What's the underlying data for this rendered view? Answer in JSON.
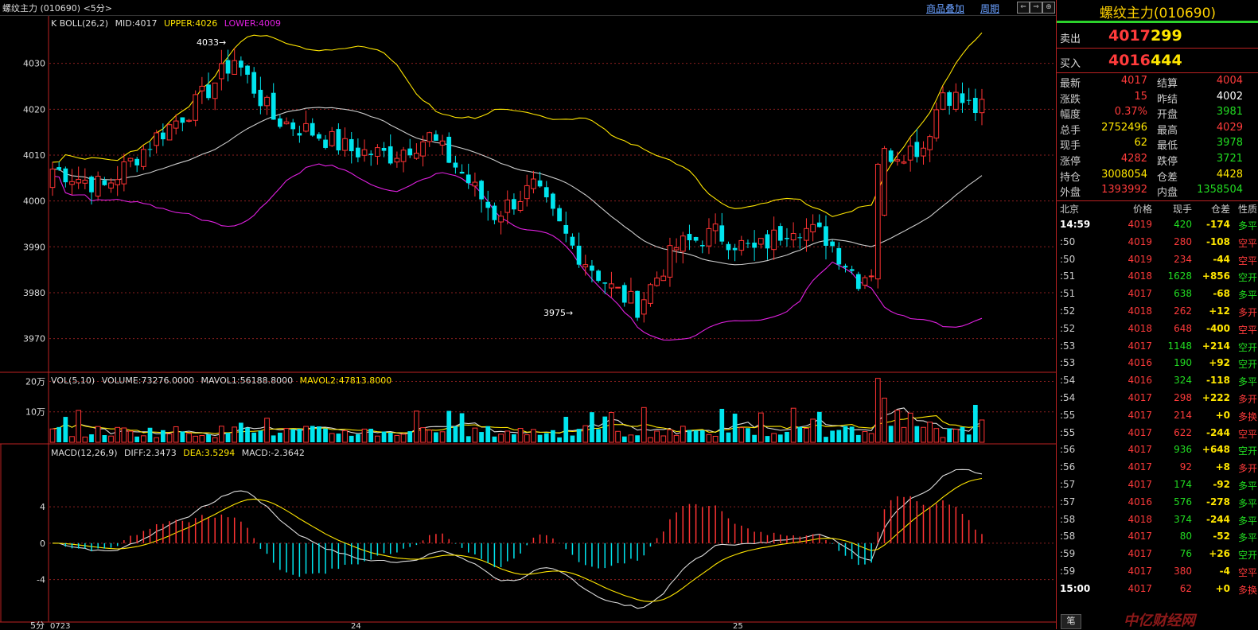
{
  "title": "螺纹主力 (010690) <5分>",
  "top_links": {
    "overlay": "商品叠加",
    "period": "周期"
  },
  "nav_buttons": [
    "⇐",
    "⇒",
    "⊕"
  ],
  "main_chart": {
    "indicator": "K BOLL(26,2)",
    "mid": "MID:4017",
    "upper": "UPPER:4026",
    "lower": "LOWER:4009",
    "y_ticks": [
      "4030",
      "4020",
      "4010",
      "4000",
      "3990",
      "3980",
      "3970"
    ],
    "high_mark": "4033",
    "low_mark": "3975"
  },
  "volume_chart": {
    "indicator": "VOL(5,10)",
    "volume": "VOLUME:73276.0000",
    "mavol1": "MAVOL1:56188.8000",
    "mavol2": "MAVOL2:47813.8000",
    "y_ticks": [
      "20万",
      "10万"
    ]
  },
  "macd_chart": {
    "indicator": "MACD(12,26,9)",
    "diff": "DIFF:2.3473",
    "dea": "DEA:3.5294",
    "macd": "MACD:-2.3642",
    "y_ticks": [
      "4",
      "0",
      "-4"
    ]
  },
  "x_axis": {
    "period": "5分",
    "labels": [
      "0723",
      "24",
      "25"
    ]
  },
  "colors": {
    "up": "#ff3333",
    "down": "#00e5ee",
    "upper": "#ffe600",
    "mid": "#cccccc",
    "lower": "#e020e0",
    "border": "#b22222"
  },
  "chart_data": [
    {
      "type": "candlestick",
      "title": "K BOLL(26,2)",
      "ylim": [
        3963,
        4040
      ],
      "y_ticks": [
        4030,
        4020,
        4010,
        4000,
        3990,
        3980,
        3970
      ],
      "bars": 144,
      "boll": {
        "mid": 4017,
        "upper": 4026,
        "lower": 4009
      },
      "high": 4033,
      "low": 3975,
      "anchors_close": [
        [
          0,
          4007
        ],
        [
          8,
          4003
        ],
        [
          16,
          4014
        ],
        [
          22,
          4021
        ],
        [
          28,
          4031
        ],
        [
          34,
          4018
        ],
        [
          40,
          4015
        ],
        [
          46,
          4011
        ],
        [
          52,
          4010
        ],
        [
          58,
          4014
        ],
        [
          63,
          4006
        ],
        [
          68,
          3997
        ],
        [
          74,
          4003
        ],
        [
          80,
          3990
        ],
        [
          86,
          3981
        ],
        [
          90,
          3977
        ],
        [
          96,
          3990
        ],
        [
          102,
          3993
        ],
        [
          108,
          3989
        ],
        [
          114,
          3995
        ],
        [
          119,
          3992
        ],
        [
          124,
          3983
        ],
        [
          126,
          3985
        ],
        [
          128,
          4010
        ],
        [
          134,
          4012
        ],
        [
          137,
          4024
        ],
        [
          142,
          4020
        ],
        [
          146,
          4020
        ],
        [
          150,
          4018
        ]
      ]
    },
    {
      "type": "bar",
      "title": "VOL(5,10)",
      "ylim": [
        0,
        230000
      ],
      "y_ticks": [
        200000,
        100000
      ],
      "last_volume": 73276,
      "mavol1": 56188.8,
      "mavol2": 47813.8
    },
    {
      "type": "bar",
      "title": "MACD(12,26,9)",
      "ylim": [
        -8.5,
        9
      ],
      "y_ticks": [
        4,
        0,
        -4
      ],
      "diff": 2.3473,
      "dea": 3.5294,
      "macd": -2.3642
    }
  ],
  "quote": {
    "name": "螺纹主力(010690)",
    "ask": {
      "label": "卖出",
      "price": "4017",
      "vol": "299"
    },
    "bid": {
      "label": "买入",
      "price": "4016",
      "vol": "444"
    },
    "stats": [
      {
        "l1": "最新",
        "v1": "4017",
        "c1": "red",
        "l2": "结算",
        "v2": "4004",
        "c2": "red"
      },
      {
        "l1": "涨跌",
        "v1": "15",
        "c1": "red",
        "l2": "昨结",
        "v2": "4002",
        "c2": "white"
      },
      {
        "l1": "幅度",
        "v1": "0.37%",
        "c1": "red",
        "l2": "开盘",
        "v2": "3981",
        "c2": "green"
      },
      {
        "l1": "总手",
        "v1": "2752496",
        "c1": "yellow",
        "l2": "最高",
        "v2": "4029",
        "c2": "red"
      },
      {
        "l1": "现手",
        "v1": "62",
        "c1": "yellow",
        "l2": "最低",
        "v2": "3978",
        "c2": "green"
      },
      {
        "l1": "涨停",
        "v1": "4282",
        "c1": "red",
        "l2": "跌停",
        "v2": "3721",
        "c2": "green"
      },
      {
        "l1": "持仓",
        "v1": "3008054",
        "c1": "yellow",
        "l2": "仓差",
        "v2": "4428",
        "c2": "yellow"
      },
      {
        "l1": "外盘",
        "v1": "1393992",
        "c1": "red",
        "l2": "内盘",
        "v2": "1358504",
        "c2": "green"
      }
    ],
    "trades_header": {
      "time": "北京",
      "price": "价格",
      "vol": "现手",
      "oi": "仓差",
      "nature": "性质"
    },
    "trades": [
      {
        "time": "14:59",
        "price": "4019",
        "pc": "red",
        "vol": "420",
        "vc": "green",
        "oi": "-174",
        "nature": "多平",
        "nc": "green"
      },
      {
        "time": ":50",
        "price": "4019",
        "pc": "red",
        "vol": "280",
        "vc": "red",
        "oi": "-108",
        "nature": "空平",
        "nc": "red"
      },
      {
        "time": ":50",
        "price": "4019",
        "pc": "red",
        "vol": "234",
        "vc": "red",
        "oi": "-44",
        "nature": "空平",
        "nc": "red"
      },
      {
        "time": ":51",
        "price": "4018",
        "pc": "red",
        "vol": "1628",
        "vc": "green",
        "oi": "+856",
        "nature": "空开",
        "nc": "green"
      },
      {
        "time": ":51",
        "price": "4017",
        "pc": "red",
        "vol": "638",
        "vc": "green",
        "oi": "-68",
        "nature": "多平",
        "nc": "green"
      },
      {
        "time": ":52",
        "price": "4018",
        "pc": "red",
        "vol": "262",
        "vc": "red",
        "oi": "+12",
        "nature": "多开",
        "nc": "red"
      },
      {
        "time": ":52",
        "price": "4018",
        "pc": "red",
        "vol": "648",
        "vc": "red",
        "oi": "-400",
        "nature": "空平",
        "nc": "red"
      },
      {
        "time": ":53",
        "price": "4017",
        "pc": "red",
        "vol": "1148",
        "vc": "green",
        "oi": "+214",
        "nature": "空开",
        "nc": "green"
      },
      {
        "time": ":53",
        "price": "4016",
        "pc": "red",
        "vol": "190",
        "vc": "green",
        "oi": "+92",
        "nature": "空开",
        "nc": "green"
      },
      {
        "time": ":54",
        "price": "4016",
        "pc": "red",
        "vol": "324",
        "vc": "green",
        "oi": "-118",
        "nature": "多平",
        "nc": "green"
      },
      {
        "time": ":54",
        "price": "4017",
        "pc": "red",
        "vol": "298",
        "vc": "red",
        "oi": "+222",
        "nature": "多开",
        "nc": "red"
      },
      {
        "time": ":55",
        "price": "4017",
        "pc": "red",
        "vol": "214",
        "vc": "red",
        "oi": "+0",
        "nature": "多换",
        "nc": "red"
      },
      {
        "time": ":55",
        "price": "4017",
        "pc": "red",
        "vol": "622",
        "vc": "red",
        "oi": "-244",
        "nature": "空平",
        "nc": "red"
      },
      {
        "time": ":56",
        "price": "4017",
        "pc": "red",
        "vol": "936",
        "vc": "green",
        "oi": "+648",
        "nature": "空开",
        "nc": "green"
      },
      {
        "time": ":56",
        "price": "4017",
        "pc": "red",
        "vol": "92",
        "vc": "red",
        "oi": "+8",
        "nature": "多开",
        "nc": "red"
      },
      {
        "time": ":57",
        "price": "4017",
        "pc": "red",
        "vol": "174",
        "vc": "green",
        "oi": "-92",
        "nature": "多平",
        "nc": "green"
      },
      {
        "time": ":57",
        "price": "4016",
        "pc": "red",
        "vol": "576",
        "vc": "green",
        "oi": "-278",
        "nature": "多平",
        "nc": "green"
      },
      {
        "time": ":58",
        "price": "4018",
        "pc": "red",
        "vol": "374",
        "vc": "green",
        "oi": "-244",
        "nature": "多平",
        "nc": "green"
      },
      {
        "time": ":58",
        "price": "4017",
        "pc": "red",
        "vol": "80",
        "vc": "green",
        "oi": "-52",
        "nature": "多平",
        "nc": "green"
      },
      {
        "time": ":59",
        "price": "4017",
        "pc": "red",
        "vol": "76",
        "vc": "green",
        "oi": "+26",
        "nature": "空开",
        "nc": "green"
      },
      {
        "time": ":59",
        "price": "4017",
        "pc": "red",
        "vol": "380",
        "vc": "red",
        "oi": "-4",
        "nature": "空平",
        "nc": "red"
      },
      {
        "time": "15:00",
        "price": "4017",
        "pc": "red",
        "vol": "62",
        "vc": "red",
        "oi": "+0",
        "nature": "多换",
        "nc": "red"
      }
    ]
  },
  "bottom_tab": "笔",
  "watermark": "中亿财经网"
}
